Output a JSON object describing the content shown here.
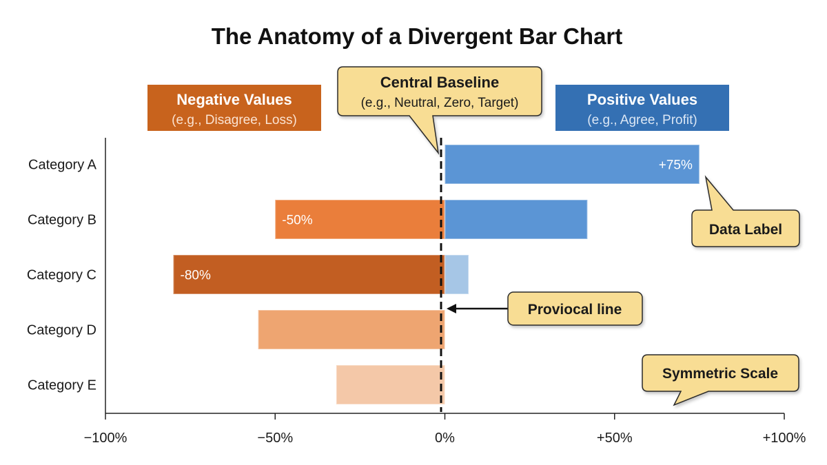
{
  "chart_data": {
    "type": "bar",
    "orientation": "horizontal-divergent",
    "title": "The Anatomy of a Divergent Bar Chart",
    "categories": [
      "Category A",
      "Category B",
      "Category C",
      "Category D",
      "Category E"
    ],
    "series": [
      {
        "values": [
          0,
          -50,
          -80,
          -55,
          -32
        ]
      },
      {
        "values": [
          75,
          42,
          7,
          0,
          0
        ]
      }
    ],
    "bar_colors": [
      [
        "#3d74b8",
        "#5b95d5"
      ],
      [
        "#ea7e3b",
        "#5b95d5"
      ],
      [
        "#c25e22",
        "#a6c6e6"
      ],
      [
        "#eea571",
        "#a6c6e6"
      ],
      [
        "#f4c8a8",
        "#a6c6e6"
      ]
    ],
    "data_labels": [
      {
        "category": "Category A",
        "side": "positive",
        "text": "+75%"
      },
      {
        "category": "Category B",
        "side": "negative",
        "text": "-50%"
      },
      {
        "category": "Category C",
        "side": "negative",
        "text": "-80%"
      }
    ],
    "x_ticks": [
      {
        "value": -100,
        "label": "−100%"
      },
      {
        "value": -50,
        "label": "−50%"
      },
      {
        "value": 0,
        "label": "0%"
      },
      {
        "value": 50,
        "label": "+50%"
      },
      {
        "value": 100,
        "label": "+100%"
      }
    ],
    "xlim": [
      -100,
      100
    ],
    "grid": false,
    "legend": {
      "negative": {
        "title": "Negative Values",
        "subtitle": "(e.g., Disagree, Loss)",
        "color": "#c8631d"
      },
      "positive": {
        "title": "Positive Values",
        "subtitle": "(e.g., Agree, Profit)",
        "color": "#3470b3"
      }
    },
    "annotations": {
      "baseline": {
        "title": "Central Baseline",
        "subtitle": "(e.g., Neutral, Zero, Target)"
      },
      "data_label": "Data Label",
      "line": "Proviocal  line",
      "scale": "Symmetric Scale"
    },
    "callout_fill": "#f8dd94",
    "callout_stroke": "#2a2a2a"
  }
}
